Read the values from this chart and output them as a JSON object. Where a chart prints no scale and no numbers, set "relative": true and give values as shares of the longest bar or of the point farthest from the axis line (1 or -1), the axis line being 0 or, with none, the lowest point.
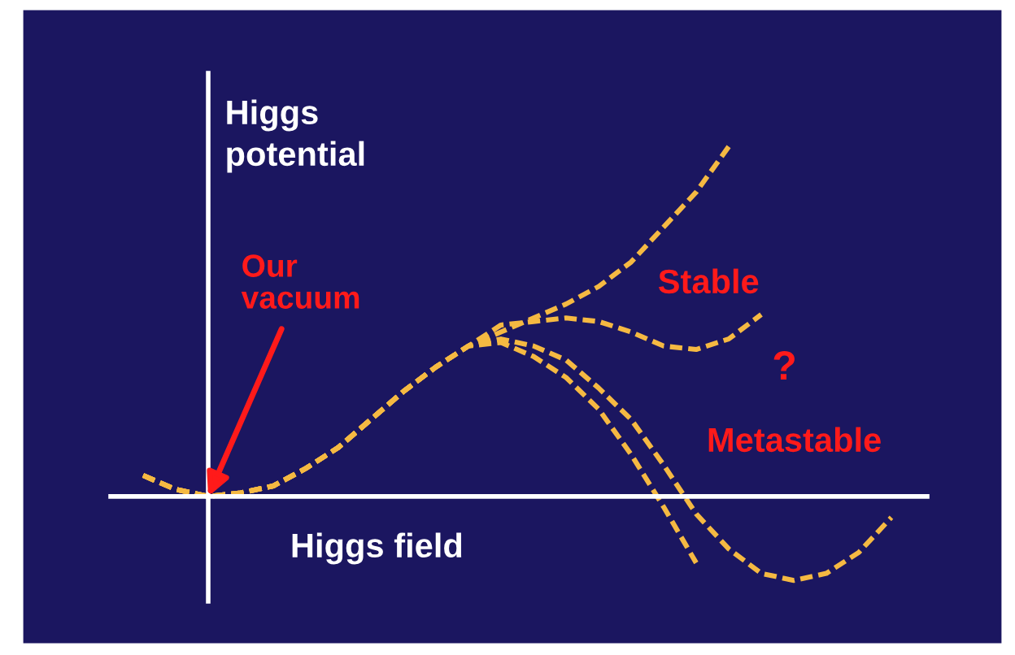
{
  "chart_data": {
    "type": "line",
    "relative": true,
    "xlabel": "Higgs field",
    "ylabel": "Higgs potential",
    "categories": [
      null,
      null,
      null,
      null,
      null,
      null,
      null,
      null,
      null,
      null,
      null,
      null,
      null,
      null,
      null,
      null,
      null,
      null,
      null,
      null,
      null,
      null,
      null,
      null
    ],
    "series": [
      {
        "color": "#f5b942",
        "values": [
          0.06,
          0.02,
          0,
          0.01,
          0.03,
          0.08,
          0.14,
          0.22,
          0.3,
          0.37,
          0.43,
          0.47,
          0.51,
          0.55,
          0.6,
          0.67,
          0.77,
          0.87,
          1,
          null,
          null,
          null,
          null,
          null
        ]
      },
      {
        "color": "#f5b942",
        "values": [
          0.06,
          0.02,
          0,
          0.01,
          0.03,
          0.08,
          0.14,
          0.22,
          0.3,
          0.37,
          0.43,
          0.49,
          0.5,
          0.51,
          0.5,
          0.47,
          0.43,
          0.42,
          0.45,
          0.52,
          null,
          null,
          null,
          null
        ]
      },
      {
        "color": "#f5b942",
        "values": [
          0.06,
          0.02,
          0,
          0.01,
          0.03,
          0.08,
          0.14,
          0.22,
          0.3,
          0.37,
          0.43,
          0.45,
          0.43,
          0.39,
          0.31,
          0.22,
          0.09,
          -0.05,
          -0.15,
          -0.22,
          -0.24,
          -0.22,
          -0.16,
          -0.06
        ]
      },
      {
        "color": "#f5b942",
        "values": [
          0.06,
          0.02,
          0,
          0.01,
          0.03,
          0.08,
          0.14,
          0.22,
          0.3,
          0.37,
          0.43,
          0.44,
          0.4,
          0.34,
          0.25,
          0.12,
          -0.03,
          -0.19,
          null,
          null,
          null,
          null,
          null,
          null
        ]
      }
    ],
    "line_style": "dashed",
    "marker": "none",
    "legend": false,
    "grid": false,
    "annotations": [
      "Our vacuum",
      "Stable",
      "?",
      "Metastable"
    ]
  }
}
